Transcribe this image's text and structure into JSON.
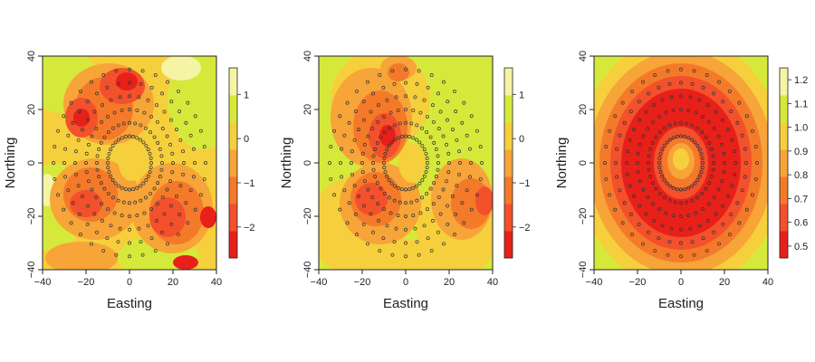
{
  "chart_data": [
    {
      "type": "heatmap",
      "title": "",
      "xlabel": "Easting",
      "ylabel": "Northing",
      "xlim": [
        -40,
        40
      ],
      "ylim": [
        -40,
        40
      ],
      "x_ticks": [
        "−40",
        "−20",
        "0",
        "20",
        "40"
      ],
      "y_ticks": [
        "−40",
        "−20",
        "0",
        "20",
        "40"
      ],
      "colorbar": {
        "range": [
          -2.7,
          1.6
        ],
        "ticks": [
          "−2",
          "−1",
          "0",
          "1"
        ],
        "tick_values": [
          -2,
          -1,
          0,
          1
        ],
        "colors": [
          "#e8201a",
          "#f3502c",
          "#f47a2a",
          "#f7a438",
          "#f6cf3c",
          "#d6e93a",
          "#f4f4a4"
        ]
      },
      "sample_points": {
        "rings": [
          10,
          15,
          20,
          25,
          30,
          35
        ],
        "spokes": 36
      }
    },
    {
      "type": "heatmap",
      "title": "",
      "xlabel": "Easting",
      "ylabel": "Northing",
      "xlim": [
        -40,
        40
      ],
      "ylim": [
        -40,
        40
      ],
      "x_ticks": [
        "−40",
        "−20",
        "0",
        "20",
        "40"
      ],
      "y_ticks": [
        "−40",
        "−20",
        "0",
        "20",
        "40"
      ],
      "colorbar": {
        "range": [
          -2.7,
          1.6
        ],
        "ticks": [
          "−2",
          "−1",
          "0",
          "1"
        ],
        "tick_values": [
          -2,
          -1,
          0,
          1
        ],
        "colors": [
          "#e8201a",
          "#f3502c",
          "#f47a2a",
          "#f7a438",
          "#f6cf3c",
          "#d6e93a",
          "#f4f4a4"
        ]
      },
      "sample_points": {
        "rings": [
          10,
          15,
          20,
          25,
          30,
          35
        ],
        "spokes": 36
      }
    },
    {
      "type": "heatmap",
      "title": "",
      "xlabel": "Easting",
      "ylabel": "Northing",
      "xlim": [
        -40,
        40
      ],
      "ylim": [
        -40,
        40
      ],
      "x_ticks": [
        "−40",
        "−20",
        "0",
        "20",
        "40"
      ],
      "y_ticks": [
        "−40",
        "−20",
        "0",
        "20",
        "40"
      ],
      "colorbar": {
        "range": [
          0.45,
          1.25
        ],
        "ticks": [
          "0.5",
          "0.6",
          "0.7",
          "0.8",
          "0.9",
          "1.0",
          "1.1",
          "1.2"
        ],
        "tick_values": [
          0.5,
          0.6,
          0.7,
          0.8,
          0.9,
          1.0,
          1.1,
          1.2
        ],
        "colors": [
          "#e8201a",
          "#f3502c",
          "#f47a2a",
          "#f7a438",
          "#f6cf3c",
          "#d6e93a",
          "#f4f4a4"
        ]
      },
      "sample_points": {
        "rings": [
          10,
          15,
          20,
          25,
          30,
          35
        ],
        "spokes": 36
      }
    }
  ]
}
